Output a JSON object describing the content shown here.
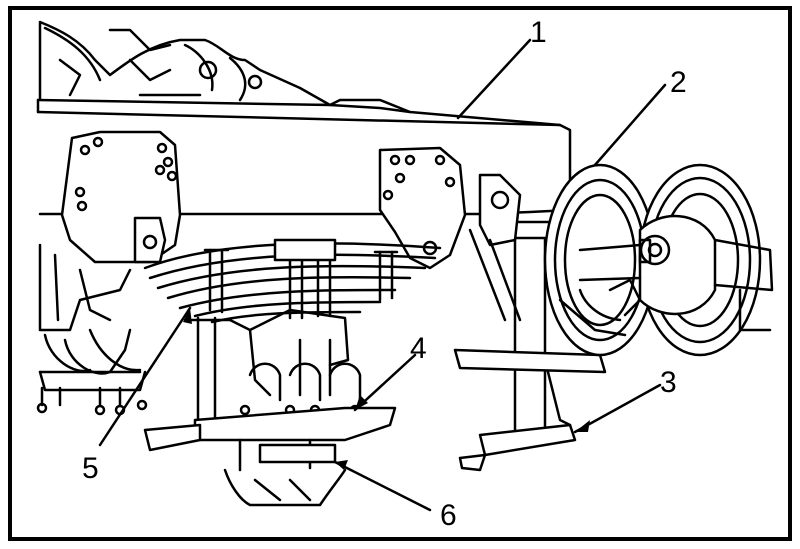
{
  "figure": {
    "colors": {
      "ink": "#000000",
      "paper": "#ffffff"
    },
    "callouts": [
      {
        "id": "c1",
        "label": "1"
      },
      {
        "id": "c2",
        "label": "2"
      },
      {
        "id": "c3",
        "label": "3"
      },
      {
        "id": "c4",
        "label": "4"
      },
      {
        "id": "c5",
        "label": "5"
      },
      {
        "id": "c6",
        "label": "6"
      }
    ]
  }
}
